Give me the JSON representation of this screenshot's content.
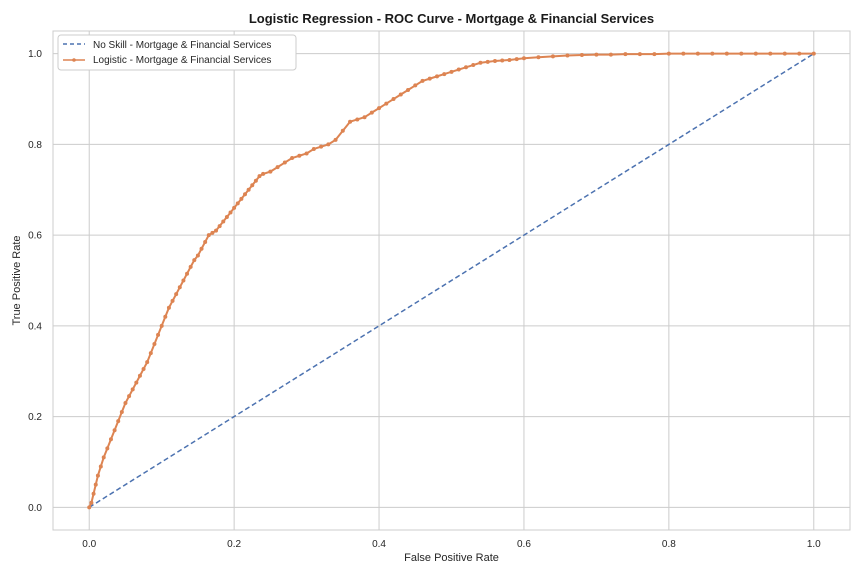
{
  "chart_data": {
    "type": "line",
    "title": "Logistic Regression - ROC Curve - Mortgage & Financial Services",
    "xlabel": "False Positive Rate",
    "ylabel": "True Positive Rate",
    "xlim": [
      -0.05,
      1.05
    ],
    "ylim": [
      -0.05,
      1.05
    ],
    "xticks": [
      "0.0",
      "0.2",
      "0.4",
      "0.6",
      "0.8",
      "1.0"
    ],
    "yticks": [
      "0.0",
      "0.2",
      "0.4",
      "0.6",
      "0.8",
      "1.0"
    ],
    "grid": true,
    "legend_position": "top-left",
    "series": [
      {
        "name": "No Skill - Mortgage & Financial Services",
        "color": "#4c72b0",
        "style": "dashed",
        "marker": "none",
        "x": [
          0.0,
          1.0
        ],
        "y": [
          0.0,
          1.0
        ]
      },
      {
        "name": "Logistic - Mortgage & Financial Services",
        "color": "#dd8452",
        "style": "solid",
        "marker": "dot",
        "x": [
          0.0,
          0.003,
          0.006,
          0.009,
          0.012,
          0.016,
          0.02,
          0.025,
          0.03,
          0.035,
          0.04,
          0.045,
          0.05,
          0.055,
          0.06,
          0.065,
          0.07,
          0.075,
          0.08,
          0.085,
          0.09,
          0.095,
          0.1,
          0.105,
          0.11,
          0.115,
          0.12,
          0.125,
          0.13,
          0.135,
          0.14,
          0.145,
          0.15,
          0.155,
          0.16,
          0.165,
          0.17,
          0.175,
          0.18,
          0.185,
          0.19,
          0.195,
          0.2,
          0.205,
          0.21,
          0.215,
          0.22,
          0.225,
          0.23,
          0.235,
          0.24,
          0.25,
          0.26,
          0.27,
          0.28,
          0.29,
          0.3,
          0.31,
          0.32,
          0.33,
          0.34,
          0.35,
          0.36,
          0.37,
          0.38,
          0.39,
          0.4,
          0.41,
          0.42,
          0.43,
          0.44,
          0.45,
          0.46,
          0.47,
          0.48,
          0.49,
          0.5,
          0.51,
          0.52,
          0.53,
          0.54,
          0.55,
          0.56,
          0.57,
          0.58,
          0.59,
          0.6,
          0.62,
          0.64,
          0.66,
          0.68,
          0.7,
          0.72,
          0.74,
          0.76,
          0.78,
          0.8,
          0.82,
          0.84,
          0.86,
          0.88,
          0.9,
          0.92,
          0.94,
          0.96,
          0.98,
          1.0
        ],
        "y": [
          0.0,
          0.01,
          0.03,
          0.05,
          0.07,
          0.09,
          0.11,
          0.13,
          0.15,
          0.17,
          0.19,
          0.21,
          0.23,
          0.245,
          0.26,
          0.275,
          0.29,
          0.305,
          0.32,
          0.34,
          0.36,
          0.38,
          0.4,
          0.42,
          0.44,
          0.455,
          0.47,
          0.485,
          0.5,
          0.515,
          0.53,
          0.545,
          0.555,
          0.57,
          0.585,
          0.6,
          0.605,
          0.61,
          0.62,
          0.63,
          0.64,
          0.65,
          0.66,
          0.67,
          0.68,
          0.69,
          0.7,
          0.71,
          0.72,
          0.73,
          0.735,
          0.74,
          0.75,
          0.76,
          0.77,
          0.775,
          0.78,
          0.79,
          0.795,
          0.8,
          0.81,
          0.83,
          0.85,
          0.855,
          0.86,
          0.87,
          0.88,
          0.89,
          0.9,
          0.91,
          0.92,
          0.93,
          0.94,
          0.945,
          0.95,
          0.955,
          0.96,
          0.965,
          0.97,
          0.975,
          0.98,
          0.982,
          0.984,
          0.985,
          0.986,
          0.988,
          0.99,
          0.992,
          0.994,
          0.996,
          0.997,
          0.998,
          0.998,
          0.999,
          0.999,
          0.999,
          1.0,
          1.0,
          1.0,
          1.0,
          1.0,
          1.0,
          1.0,
          1.0,
          1.0,
          1.0,
          1.0
        ]
      }
    ]
  }
}
